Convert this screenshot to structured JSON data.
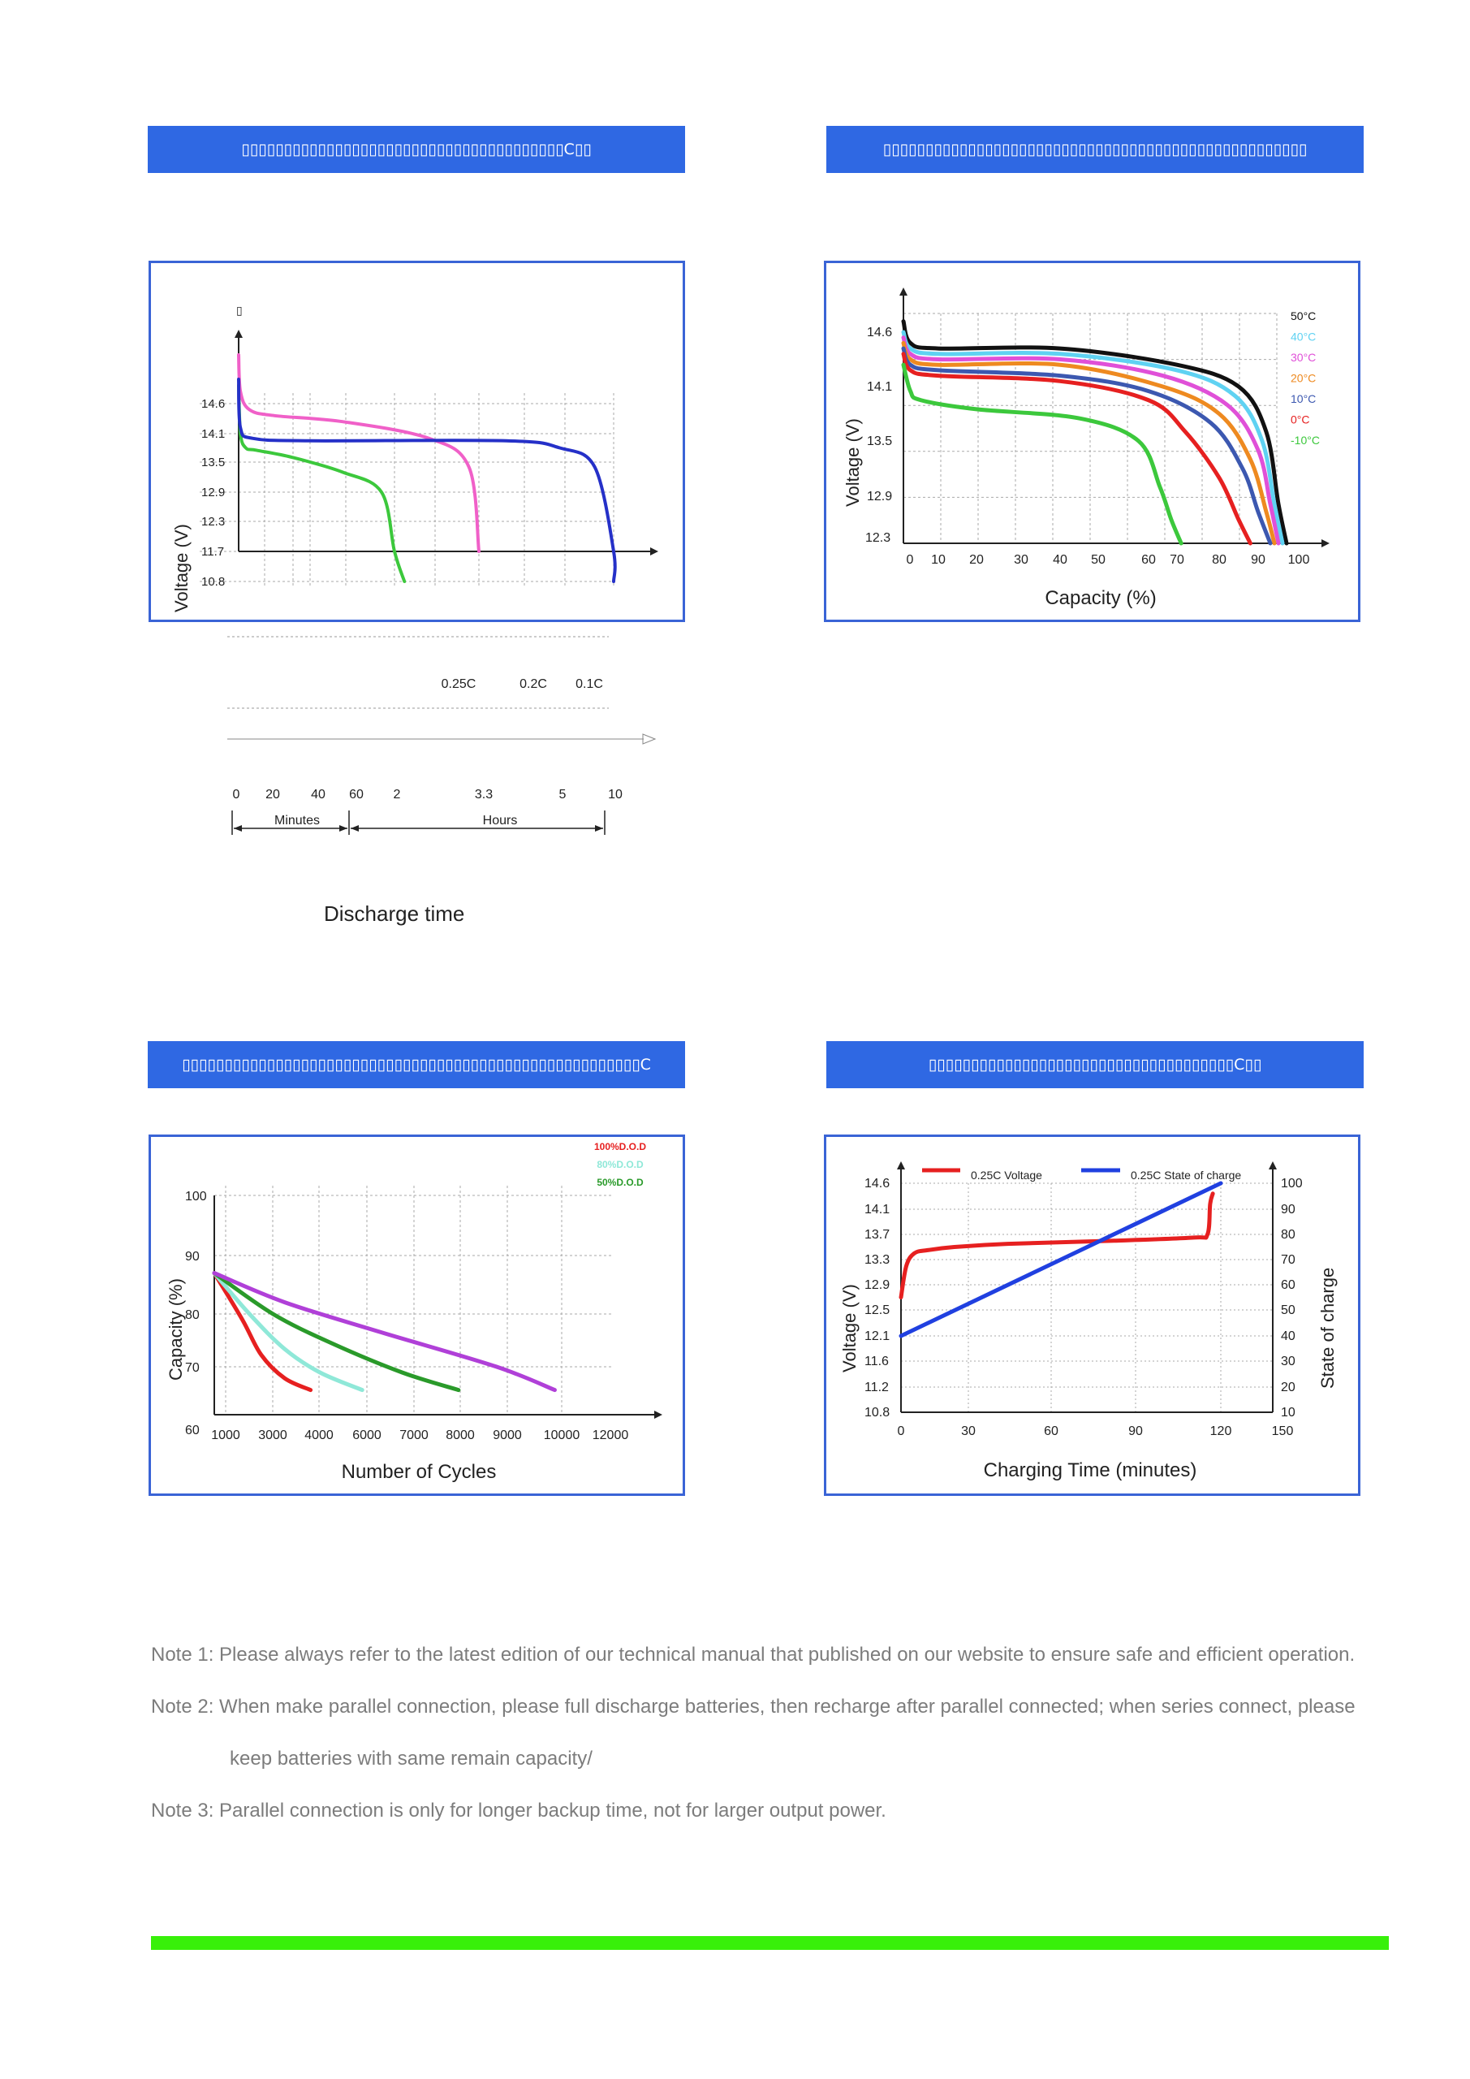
{
  "banners": {
    "b1": "▯▯▯▯▯▯▯▯▯▯▯▯▯▯▯▯▯▯▯▯▯▯▯▯▯▯▯▯▯▯▯▯▯▯▯▯▯▯C▯▯",
    "b2": "▯▯▯▯▯▯▯▯▯▯▯▯▯▯▯▯▯▯▯▯▯▯▯▯▯▯▯▯▯▯▯▯▯▯▯▯▯▯▯▯▯▯▯▯▯▯▯▯▯▯",
    "b3": "▯▯▯▯▯▯▯▯▯▯▯▯▯▯▯▯▯▯▯▯▯▯▯▯▯▯▯▯▯▯▯▯▯▯▯▯▯▯▯▯▯▯▯▯▯▯▯▯▯▯▯▯▯▯C",
    "b4": "▯▯▯▯▯▯▯▯▯▯▯▯▯▯▯▯▯▯▯▯▯▯▯▯▯▯▯▯▯▯▯▯▯▯▯▯C▯▯"
  },
  "discharge_extra": {
    "rate_labels": [
      "0.25C",
      "0.2C",
      "0.1C"
    ],
    "time_ticks": [
      "0",
      "20",
      "40",
      "60",
      "2",
      "3.3",
      "5",
      "10"
    ],
    "minutes_label": "Minutes",
    "hours_label": "Hours",
    "xlabel": "Discharge time",
    "glyph": "▯"
  },
  "chart_data": [
    {
      "type": "line",
      "ylabel": "Voltage (V)",
      "xlabel": "Discharge time",
      "y_ticks": [
        "14.6",
        "14.1",
        "13.5",
        "12.9",
        "12.3",
        "11.7",
        "10.8"
      ],
      "series": [
        {
          "name": "0.25C",
          "color": "#3cc83c",
          "x_hours": [
            0,
            0.05,
            0.2,
            0.5,
            1.5,
            2.5,
            3.1,
            3.3,
            3.5
          ],
          "y": [
            14.9,
            14.1,
            13.8,
            13.75,
            13.6,
            13.3,
            12.9,
            11.7,
            10.8
          ]
        },
        {
          "name": "0.2C",
          "color": "#f060c8",
          "x_hours": [
            0,
            0.05,
            0.3,
            1.0,
            2.5,
            4.0,
            4.8,
            5.0
          ],
          "y": [
            15.4,
            14.8,
            14.5,
            14.4,
            14.3,
            14.0,
            13.4,
            11.7
          ]
        },
        {
          "name": "0.1C",
          "color": "#2530c8",
          "x_hours": [
            0,
            0.05,
            0.4,
            2.0,
            6.0,
            8.0,
            9.3,
            10.0,
            10.0
          ],
          "y": [
            15.0,
            14.2,
            14.0,
            13.95,
            13.95,
            13.8,
            13.4,
            11.7,
            10.8
          ]
        }
      ]
    },
    {
      "type": "line",
      "ylabel": "Voltage (V)",
      "xlabel": "Capacity (%)",
      "x_ticks": [
        "0",
        "10",
        "20",
        "30",
        "40",
        "50",
        "60",
        "70",
        "80",
        "90",
        "100"
      ],
      "y_ticks": [
        "14.6",
        "14.1",
        "13.5",
        "12.9",
        "12.3"
      ],
      "series": [
        {
          "name": "50°C",
          "color": "#111111",
          "x": [
            0,
            2,
            10,
            40,
            70,
            85,
            92,
            95,
            97
          ],
          "y": [
            14.7,
            14.5,
            14.45,
            14.45,
            14.3,
            14.1,
            13.6,
            12.8,
            12.3
          ]
        },
        {
          "name": "40°C",
          "color": "#5fd2f2",
          "x": [
            0,
            2,
            10,
            40,
            70,
            84,
            91,
            94,
            96
          ],
          "y": [
            14.6,
            14.45,
            14.4,
            14.4,
            14.25,
            14.0,
            13.5,
            12.8,
            12.3
          ]
        },
        {
          "name": "30°C",
          "color": "#e050d8",
          "x": [
            0,
            2,
            10,
            40,
            65,
            82,
            90,
            93,
            95
          ],
          "y": [
            14.55,
            14.4,
            14.35,
            14.35,
            14.2,
            13.9,
            13.4,
            12.8,
            12.3
          ]
        },
        {
          "name": "20°C",
          "color": "#ee8a20",
          "x": [
            0,
            2,
            10,
            40,
            65,
            80,
            88,
            92,
            94
          ],
          "y": [
            14.5,
            14.35,
            14.3,
            14.3,
            14.1,
            13.8,
            13.3,
            12.7,
            12.3
          ]
        },
        {
          "name": "10°C",
          "color": "#3c58b0",
          "x": [
            0,
            2,
            10,
            40,
            60,
            78,
            86,
            90,
            93
          ],
          "y": [
            14.45,
            14.3,
            14.25,
            14.2,
            14.05,
            13.7,
            13.2,
            12.7,
            12.3
          ]
        },
        {
          "name": "0°C",
          "color": "#e62020",
          "x": [
            0,
            2,
            10,
            40,
            60,
            72,
            80,
            85,
            88
          ],
          "y": [
            14.4,
            14.25,
            14.2,
            14.15,
            13.95,
            13.6,
            13.1,
            12.6,
            12.3
          ]
        },
        {
          "name": "-10°C",
          "color": "#3cc83c",
          "x": [
            0,
            2,
            5,
            20,
            45,
            58,
            64,
            68,
            71
          ],
          "y": [
            14.3,
            14.05,
            13.95,
            13.85,
            13.75,
            13.5,
            13.0,
            12.6,
            12.3
          ]
        }
      ]
    },
    {
      "type": "line",
      "ylabel": "Capacity (%)",
      "xlabel": "Number of Cycles",
      "x_ticks": [
        "1000",
        "3000",
        "4000",
        "6000",
        "7000",
        "8000",
        "9000",
        "10000",
        "12000"
      ],
      "y_ticks": [
        "100",
        "90",
        "80",
        "70",
        "60"
      ],
      "series": [
        {
          "name": "100%D.O.D",
          "color": "#e62020",
          "x": [
            0,
            1200,
            2000,
            3000,
            4100
          ],
          "y": [
            87,
            79,
            73,
            69,
            67
          ]
        },
        {
          "name": "80%D.O.D",
          "color": "#8fe8d8",
          "x": [
            0,
            1500,
            3000,
            4500,
            6300
          ],
          "y": [
            87,
            80,
            74,
            70,
            67
          ]
        },
        {
          "name": "50%D.O.D",
          "color": "#2a9a2a",
          "x": [
            0,
            2500,
            5000,
            8000,
            10400
          ],
          "y": [
            87,
            80,
            75,
            70,
            67
          ]
        },
        {
          "name": "",
          "color": "#b040d8",
          "x": [
            0,
            3000,
            7000,
            12000,
            14500
          ],
          "y": [
            87,
            82,
            77,
            71,
            67
          ]
        }
      ]
    },
    {
      "type": "line",
      "ylabel": "Voltage (V)",
      "y2label": "State of charge",
      "xlabel": "Charging Time (minutes)",
      "x_ticks": [
        "0",
        "30",
        "60",
        "90",
        "120",
        "150"
      ],
      "y_ticks": [
        "14.6",
        "14.1",
        "13.7",
        "13.3",
        "12.9",
        "12.5",
        "12.1",
        "11.6",
        "11.2",
        "10.8"
      ],
      "y2_ticks": [
        "100",
        "90",
        "80",
        "70",
        "60",
        "50",
        "40",
        "30",
        "20",
        "10"
      ],
      "series": [
        {
          "name": "0.25C Voltage",
          "color": "#e62020",
          "x": [
            0,
            2,
            5,
            10,
            20,
            40,
            80,
            110,
            115,
            116,
            117
          ],
          "y": [
            12.7,
            13.2,
            13.4,
            13.45,
            13.5,
            13.55,
            13.6,
            13.65,
            13.7,
            14.2,
            14.4
          ]
        },
        {
          "name": "0.25C State of charge",
          "color": "#2040e0",
          "x": [
            0,
            120
          ],
          "y": [
            40,
            100
          ]
        }
      ]
    }
  ],
  "notes": [
    "Note 1: Please always refer to the latest edition of our technical manual that published on our website to ensure safe and efficient operation.",
    "Note 2: When make parallel connection, please full discharge batteries, then recharge after parallel connected; when series connect, please",
    "keep batteries with same remain capacity/",
    "Note 3: Parallel connection is only for longer backup time, not for larger output power."
  ]
}
